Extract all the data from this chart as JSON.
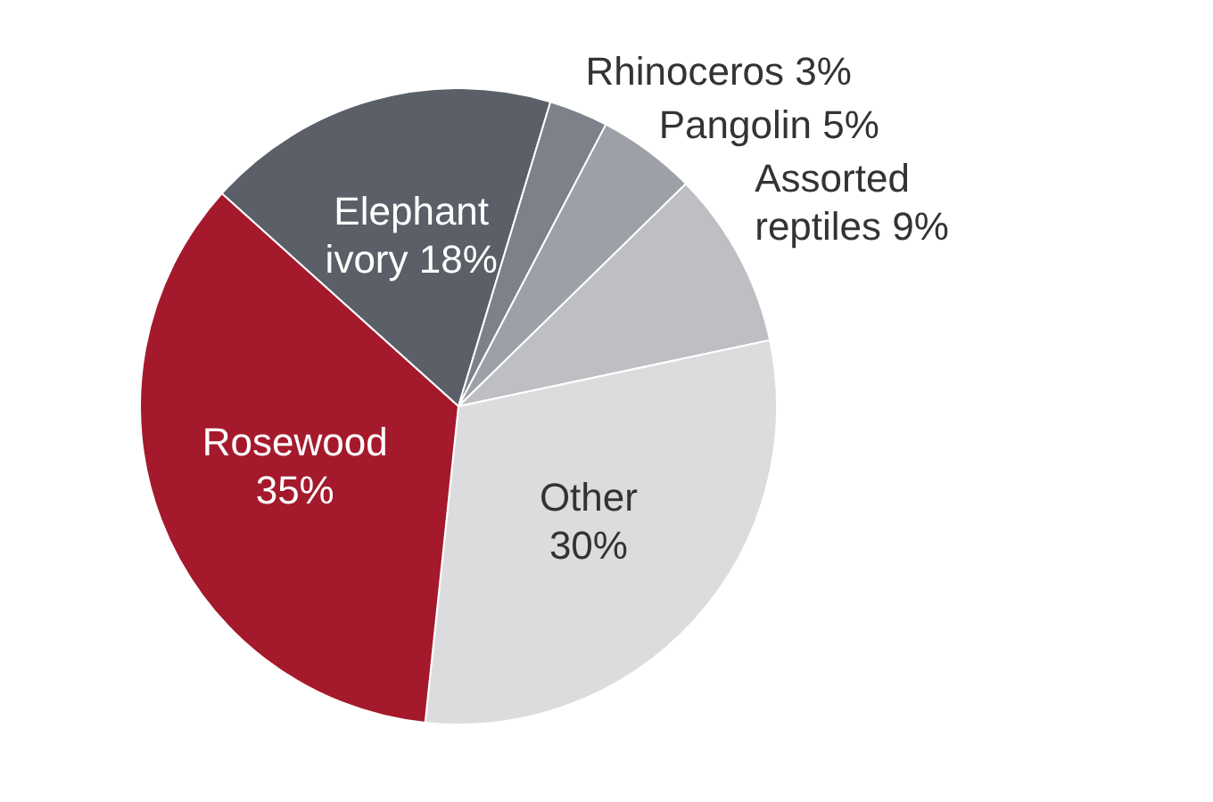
{
  "chart_data": {
    "type": "pie",
    "categories": [
      "Elephant ivory",
      "Rhinoceros",
      "Pangolin",
      "Assorted reptiles",
      "Other",
      "Rosewood"
    ],
    "values": [
      18,
      3,
      5,
      9,
      30,
      35
    ],
    "value_labels": [
      "18%",
      "3%",
      "5%",
      "9%",
      "30%",
      "35%"
    ],
    "colors": [
      "#5a5f68",
      "#7d8189",
      "#9da0a6",
      "#bdbfc3",
      "#dcdcde",
      "#a41a2c"
    ],
    "legend": false
  }
}
